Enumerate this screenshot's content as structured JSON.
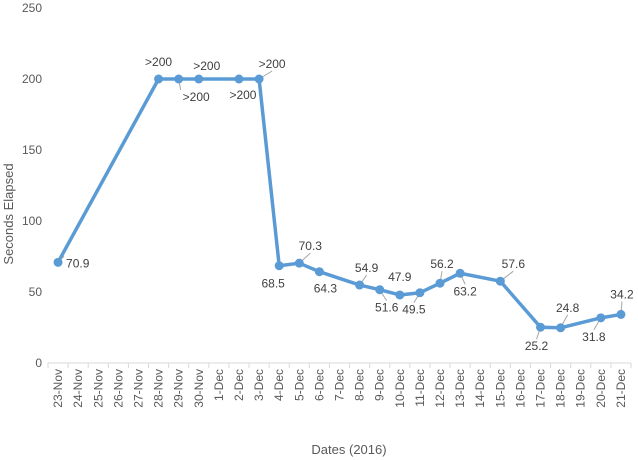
{
  "chart_data": {
    "type": "line",
    "xlabel": "Dates (2016)",
    "ylabel": "Seconds Elapsed",
    "ylim": [
      0,
      250
    ],
    "yticks": [
      0,
      50,
      100,
      150,
      200,
      250
    ],
    "grid": false,
    "legend": "none",
    "line_color": "#5b9bd5",
    "categories": [
      "23-Nov",
      "24-Nov",
      "25-Nov",
      "26-Nov",
      "27-Nov",
      "28-Nov",
      "29-Nov",
      "30-Nov",
      "1-Dec",
      "2-Dec",
      "3-Dec",
      "4-Dec",
      "5-Dec",
      "6-Dec",
      "7-Dec",
      "8-Dec",
      "9-Dec",
      "10-Dec",
      "11-Dec",
      "12-Dec",
      "13-Dec",
      "14-Dec",
      "15-Dec",
      "16-Dec",
      "17-Dec",
      "18-Dec",
      "19-Dec",
      "20-Dec",
      "21-Dec"
    ],
    "series": [
      {
        "points": [
          {
            "x": "23-Nov",
            "y": 70.9,
            "label": "70.9"
          },
          {
            "x": "28-Nov",
            "y": 200,
            "label": ">200"
          },
          {
            "x": "29-Nov",
            "y": 200,
            "label": ">200"
          },
          {
            "x": "30-Nov",
            "y": 200,
            "label": ">200"
          },
          {
            "x": "2-Dec",
            "y": 200,
            "label": ">200"
          },
          {
            "x": "3-Dec",
            "y": 200,
            "label": ">200"
          },
          {
            "x": "4-Dec",
            "y": 68.5,
            "label": "68.5"
          },
          {
            "x": "5-Dec",
            "y": 70.3,
            "label": "70.3"
          },
          {
            "x": "6-Dec",
            "y": 64.3,
            "label": "64.3"
          },
          {
            "x": "8-Dec",
            "y": 54.9,
            "label": "54.9"
          },
          {
            "x": "9-Dec",
            "y": 51.6,
            "label": "51.6"
          },
          {
            "x": "10-Dec",
            "y": 47.9,
            "label": "47.9"
          },
          {
            "x": "11-Dec",
            "y": 49.5,
            "label": "49.5"
          },
          {
            "x": "12-Dec",
            "y": 56.2,
            "label": "56.2"
          },
          {
            "x": "13-Dec",
            "y": 63.2,
            "label": "63.2"
          },
          {
            "x": "15-Dec",
            "y": 57.6,
            "label": "57.6"
          },
          {
            "x": "17-Dec",
            "y": 25.2,
            "label": "25.2"
          },
          {
            "x": "18-Dec",
            "y": 24.8,
            "label": "24.8"
          },
          {
            "x": "20-Dec",
            "y": 31.8,
            "label": "31.8"
          },
          {
            "x": "21-Dec",
            "y": 34.2,
            "label": "34.2"
          }
        ]
      }
    ]
  }
}
